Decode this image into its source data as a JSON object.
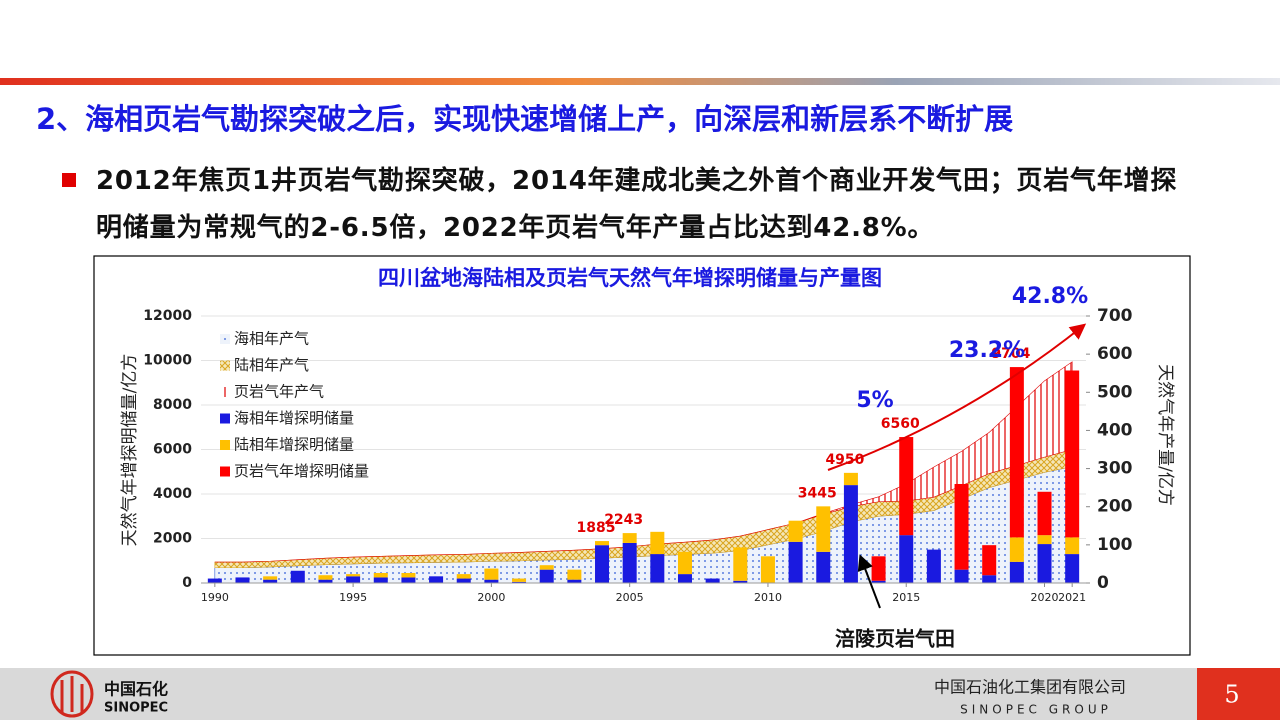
{
  "header": {
    "title": "2、海相页岩气勘探突破之后，实现快速增储上产，向深层和新层系不断扩展",
    "bullet": "2012年焦页1井页岩气勘探突破，2014年建成北美之外首个商业开发气田；页岩气年增探明储量为常规气的2-6.5倍，2022年页岩气年产量占比达到42.8%。"
  },
  "chart_data": {
    "type": "combo",
    "title": "四川盆地海陆相及页岩气天然气年增探明储量与产量图",
    "ylabel": "天然气年增探明储量/亿方",
    "y2label": "天然气年产量/亿方",
    "x": [
      1990,
      1991,
      1992,
      1993,
      1994,
      1995,
      1996,
      1997,
      1998,
      1999,
      2000,
      2001,
      2002,
      2003,
      2004,
      2005,
      2006,
      2007,
      2008,
      2009,
      2010,
      2011,
      2012,
      2013,
      2014,
      2015,
      2016,
      2017,
      2018,
      2019,
      2020,
      2021
    ],
    "xlim": [
      1989.5,
      2021.5
    ],
    "xticks": [
      1990,
      1995,
      2000,
      2005,
      2010,
      2015,
      2020,
      2021
    ],
    "ylim": [
      0,
      12000
    ],
    "yticks": [
      0,
      2000,
      4000,
      6000,
      8000,
      10000,
      12000
    ],
    "y2lim": [
      0,
      700
    ],
    "y2ticks": [
      0,
      100,
      200,
      300,
      400,
      500,
      600,
      700
    ],
    "grid": true,
    "legend": "upper left",
    "series": [
      {
        "name": "海相年产气",
        "kind": "area",
        "axis": "y2",
        "color": "#2e5bd8",
        "hatch": "dots",
        "values": [
          40,
          40,
          42,
          45,
          48,
          50,
          52,
          53,
          54,
          55,
          57,
          58,
          60,
          62,
          65,
          68,
          72,
          75,
          78,
          85,
          100,
          115,
          135,
          160,
          175,
          180,
          190,
          220,
          250,
          270,
          290,
          305
        ]
      },
      {
        "name": "陆相年产气",
        "kind": "area",
        "axis": "y2",
        "color": "#d9a520",
        "hatch": "cross",
        "values": [
          15,
          15,
          15,
          16,
          17,
          18,
          18,
          19,
          20,
          20,
          21,
          22,
          23,
          24,
          25,
          27,
          30,
          32,
          35,
          38,
          40,
          42,
          45,
          40,
          38,
          35,
          35,
          35,
          37,
          38,
          40,
          45
        ]
      },
      {
        "name": "页岩气年产气",
        "kind": "area",
        "axis": "y2",
        "color": "#e00000",
        "hatch": "vertical",
        "values": [
          0,
          0,
          0,
          0,
          0,
          0,
          0,
          0,
          0,
          0,
          0,
          0,
          0,
          0,
          0,
          0,
          0,
          0,
          0,
          0,
          0,
          0,
          2,
          5,
          13,
          45,
          79,
          90,
          108,
          154,
          200,
          230
        ]
      },
      {
        "name": "海相年增探明储量",
        "kind": "bar",
        "color": "#1a1ae0",
        "values": [
          200,
          250,
          150,
          550,
          150,
          300,
          250,
          250,
          300,
          200,
          150,
          50,
          600,
          150,
          1700,
          1800,
          1300,
          400,
          200,
          100,
          0,
          1850,
          1400,
          4400,
          100,
          2150,
          1500,
          600,
          350,
          950,
          1750,
          1300
        ]
      },
      {
        "name": "陆相年增探明储量",
        "kind": "bar",
        "color": "#ffc000",
        "values": [
          0,
          0,
          150,
          0,
          200,
          100,
          200,
          200,
          0,
          200,
          500,
          150,
          200,
          450,
          185,
          443,
          1000,
          1000,
          0,
          1500,
          1200,
          950,
          2045,
          550,
          0,
          0,
          0,
          0,
          0,
          1100,
          400,
          750
        ]
      },
      {
        "name": "页岩气年增探明储量",
        "kind": "bar",
        "color": "#ff0000",
        "values": [
          0,
          0,
          0,
          0,
          0,
          0,
          0,
          0,
          0,
          0,
          0,
          0,
          0,
          0,
          0,
          0,
          0,
          0,
          0,
          0,
          0,
          0,
          0,
          0,
          1100,
          4410,
          0,
          3850,
          1350,
          7654,
          1950,
          7500
        ]
      }
    ],
    "total_labels": [
      null,
      null,
      null,
      null,
      null,
      null,
      null,
      null,
      null,
      null,
      null,
      null,
      null,
      null,
      1885,
      2243,
      null,
      null,
      null,
      null,
      null,
      null,
      3445,
      4950,
      null,
      6560,
      null,
      null,
      null,
      9704,
      null,
      null
    ],
    "annotations": [
      "5%",
      "23.2%",
      "42.8%",
      "涪陵页岩气田"
    ]
  },
  "footer": {
    "logo_cn": "中国石化",
    "logo_en": "SINOPEC",
    "company_cn": "中国石油化工集团有限公司",
    "company_en": "SINOPEC GROUP",
    "page_number": 5
  }
}
